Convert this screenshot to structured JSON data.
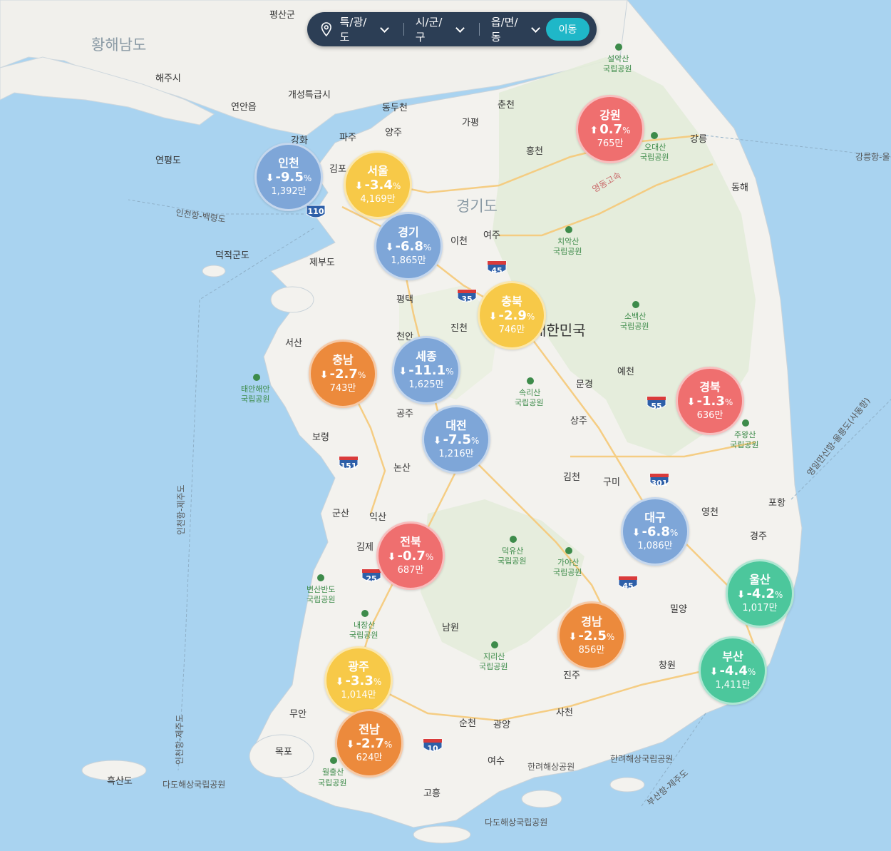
{
  "colors": {
    "sea": "#a9d3f0",
    "land": "#f3f2ee",
    "mountain": "#dfe9d5",
    "up": "#ef6f6f",
    "down_blue": "#7ea6d8",
    "down_yellow": "#f7c948",
    "down_orange": "#ec8a3c",
    "down_green": "#4cc79c",
    "searchbar": "#2c3e55",
    "button": "#1fb7c8"
  },
  "search": {
    "pin_icon": "map-pin-icon",
    "province_label": "특/광/도",
    "city_label": "시/군/구",
    "town_label": "읍/면/동",
    "go_label": "이동"
  },
  "regions": [
    {
      "name": "인천",
      "dir": "down",
      "change": "-9.5",
      "unit": "%",
      "count": "1,392만",
      "color": "#7ea6d8"
    },
    {
      "name": "서울",
      "dir": "down",
      "change": "-3.4",
      "unit": "%",
      "count": "4,169만",
      "color": "#f7c948"
    },
    {
      "name": "경기",
      "dir": "down",
      "change": "-6.8",
      "unit": "%",
      "count": "1,865만",
      "color": "#7ea6d8"
    },
    {
      "name": "강원",
      "dir": "up",
      "change": "0.7",
      "unit": "%",
      "count": "765만",
      "color": "#ef6f6f"
    },
    {
      "name": "충북",
      "dir": "down",
      "change": "-2.9",
      "unit": "%",
      "count": "746만",
      "color": "#f7c948"
    },
    {
      "name": "충남",
      "dir": "down",
      "change": "-2.7",
      "unit": "%",
      "count": "743만",
      "color": "#ec8a3c"
    },
    {
      "name": "세종",
      "dir": "down",
      "change": "-11.1",
      "unit": "%",
      "count": "1,625만",
      "color": "#7ea6d8"
    },
    {
      "name": "대전",
      "dir": "down",
      "change": "-7.5",
      "unit": "%",
      "count": "1,216만",
      "color": "#7ea6d8"
    },
    {
      "name": "경북",
      "dir": "down",
      "change": "-1.3",
      "unit": "%",
      "count": "636만",
      "color": "#ef6f6f"
    },
    {
      "name": "대구",
      "dir": "down",
      "change": "-6.8",
      "unit": "%",
      "count": "1,086만",
      "color": "#7ea6d8"
    },
    {
      "name": "전북",
      "dir": "down",
      "change": "-0.7",
      "unit": "%",
      "count": "687만",
      "color": "#ef6f6f"
    },
    {
      "name": "울산",
      "dir": "down",
      "change": "-4.2",
      "unit": "%",
      "count": "1,017만",
      "color": "#4cc79c"
    },
    {
      "name": "경남",
      "dir": "down",
      "change": "-2.5",
      "unit": "%",
      "count": "856만",
      "color": "#ec8a3c"
    },
    {
      "name": "부산",
      "dir": "down",
      "change": "-4.4",
      "unit": "%",
      "count": "1,411만",
      "color": "#4cc79c"
    },
    {
      "name": "광주",
      "dir": "down",
      "change": "-3.3",
      "unit": "%",
      "count": "1,014만",
      "color": "#f7c948"
    },
    {
      "name": "전남",
      "dir": "down",
      "change": "-2.7",
      "unit": "%",
      "count": "624만",
      "color": "#ec8a3c"
    }
  ],
  "arrows": {
    "up": "⬆",
    "down": "⬇"
  },
  "places": {
    "pyeongsan": "평산군",
    "hwanghae": "황해남도",
    "haeju": "해주시",
    "kaesong": "개성특급시",
    "yeonan": "연안읍",
    "dongducheon": "동두천",
    "chuncheon": "춘천",
    "gapyeong": "가평",
    "yangju": "양주",
    "paju": "파주",
    "ganghwa": "강화",
    "gimpo": "김포",
    "yeonpyeong": "연평도",
    "hongcheon": "홍천",
    "gangneung": "강릉",
    "donghae": "동해",
    "gyeonggi": "경기도",
    "icheon": "이천",
    "yeoju": "여주",
    "deokjeok": "덕적군도",
    "jebu": "제부도",
    "pyeongtaek": "평택",
    "jincheon": "진천",
    "cheonan": "천안",
    "seosan": "서산",
    "boryeong": "보령",
    "gongju": "공주",
    "nonsan": "논산",
    "yecheon": "예천",
    "mungyeong": "문경",
    "sangju": "상주",
    "gimcheon": "김천",
    "gumi": "구미",
    "yeongcheon": "영천",
    "pohang": "포항",
    "gyeongju": "경주",
    "gunsan": "군산",
    "iksan": "익산",
    "gimje": "김제",
    "namwon": "남원",
    "miryang": "밀양",
    "changwon": "창원",
    "jinju": "진주",
    "sacheon": "사천",
    "suncheon": "순천",
    "gwangyang": "광양",
    "yeosu": "여수",
    "goheung": "고흥",
    "muan": "무안",
    "mokpo": "목포",
    "heuksan": "흑산도",
    "daehan": "대한민국",
    "gangdong": "강릉항-울",
    "incheon_baek": "인천항-백령도",
    "incheon_jeju": "인천항-제주도",
    "incheon_jeju2": "인천항-제주도",
    "yeongil": "영일만신항-울릉도(사동항)",
    "busan_jeju": "부산항-제주도",
    "yeongdong": "영동고속",
    "dado1": "다도해상국립공원",
    "dado2": "다도해상국립공원",
    "hallyeo1": "한려해상공원",
    "hallyeo2": "한려해상국립공원"
  },
  "parks": {
    "seorak": [
      "설악산",
      "국립공원"
    ],
    "odae": [
      "오대산",
      "국립공원"
    ],
    "chiak": [
      "치악산",
      "국립공원"
    ],
    "sobaek": [
      "소백산",
      "국립공원"
    ],
    "taean": [
      "태안해안",
      "국립공원"
    ],
    "songni": [
      "속리산",
      "국립공원"
    ],
    "juwang": [
      "주왕산",
      "국립공원"
    ],
    "deogyu": [
      "덕유산",
      "국립공원"
    ],
    "gaya": [
      "가야산",
      "국립공원"
    ],
    "byeonsan": [
      "변산반도",
      "국립공원"
    ],
    "naejang": [
      "내장산",
      "국립공원"
    ],
    "jiri": [
      "지리산",
      "국립공원"
    ],
    "wolchul": [
      "월출산",
      "국립공원"
    ]
  },
  "routes": [
    "110",
    "45",
    "35",
    "55",
    "151",
    "301",
    "25",
    "45",
    "10"
  ]
}
